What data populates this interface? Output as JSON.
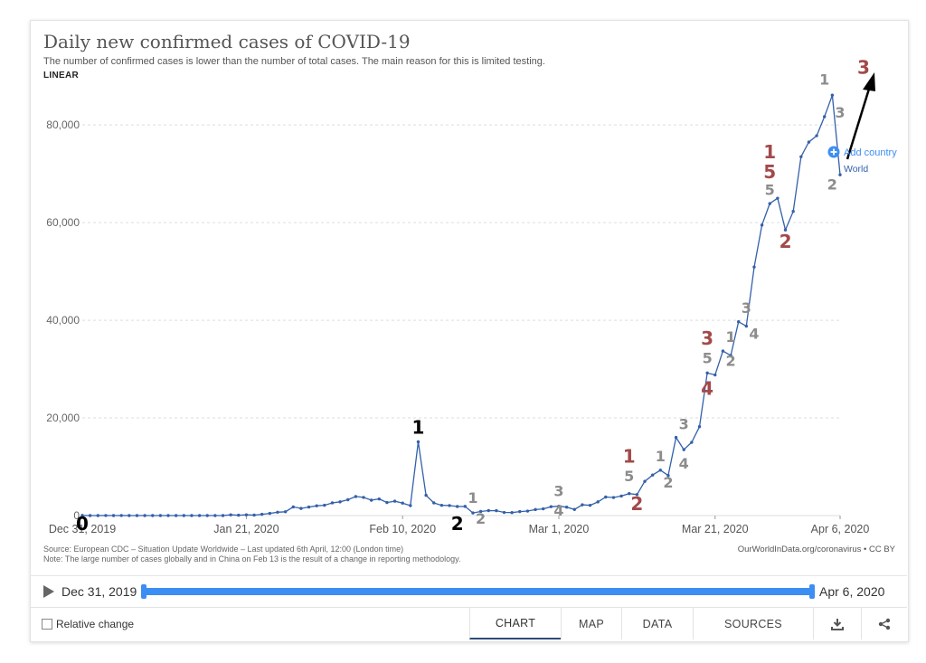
{
  "header": {
    "title": "Daily new confirmed cases of COVID-19",
    "subtitle": "The number of confirmed cases is lower than the number of total cases. The main reason for this is limited testing.",
    "scale_label": "LINEAR"
  },
  "legend": {
    "add_country_label": "Add country",
    "series_label": "World"
  },
  "source_text": "Source: European CDC – Situation Update Worldwide – Last updated 6th April, 12:00 (London time)",
  "note_text": "Note: The large number of cases globally and in China on Feb 13 is the result of a change in reporting methodology.",
  "owid_text": "OurWorldInData.org/coronavirus • CC BY",
  "timeline": {
    "start_label": "Dec 31, 2019",
    "end_label": "Apr 6, 2020"
  },
  "footer": {
    "relative_change_label": "Relative change",
    "tabs": [
      "CHART",
      "MAP",
      "DATA",
      "SOURCES"
    ],
    "active_tab": "CHART"
  },
  "colors": {
    "line": "#3360a9",
    "grid": "#dddddd",
    "accent": "#3d8ef2",
    "annotation_gray": "#8c8c8c",
    "annotation_red": "#a24a4a",
    "annotation_black": "#000000"
  },
  "chart_data": {
    "type": "line",
    "title": "Daily new confirmed cases of COVID-19",
    "x_start": "2019-12-31",
    "x_end": "2020-04-06",
    "x_tick_labels": [
      "Dec 31, 2019",
      "Jan 21, 2020",
      "Feb 10, 2020",
      "Mar 1, 2020",
      "Mar 21, 2020",
      "Apr 6, 2020"
    ],
    "x_tick_dates": [
      "2019-12-31",
      "2020-01-21",
      "2020-02-10",
      "2020-03-01",
      "2020-03-21",
      "2020-04-06"
    ],
    "y_ticks": [
      0,
      20000,
      40000,
      60000,
      80000
    ],
    "y_tick_labels": [
      "0",
      "20,000",
      "40,000",
      "60,000",
      "80,000"
    ],
    "ylim": [
      0,
      88000
    ],
    "series": [
      {
        "name": "World",
        "x": [
          "2019-12-31",
          "2020-01-01",
          "2020-01-02",
          "2020-01-03",
          "2020-01-04",
          "2020-01-05",
          "2020-01-06",
          "2020-01-07",
          "2020-01-08",
          "2020-01-09",
          "2020-01-10",
          "2020-01-11",
          "2020-01-12",
          "2020-01-13",
          "2020-01-14",
          "2020-01-15",
          "2020-01-16",
          "2020-01-17",
          "2020-01-18",
          "2020-01-19",
          "2020-01-20",
          "2020-01-21",
          "2020-01-22",
          "2020-01-23",
          "2020-01-24",
          "2020-01-25",
          "2020-01-26",
          "2020-01-27",
          "2020-01-28",
          "2020-01-29",
          "2020-01-30",
          "2020-01-31",
          "2020-02-01",
          "2020-02-02",
          "2020-02-03",
          "2020-02-04",
          "2020-02-05",
          "2020-02-06",
          "2020-02-07",
          "2020-02-08",
          "2020-02-09",
          "2020-02-10",
          "2020-02-11",
          "2020-02-12",
          "2020-02-13",
          "2020-02-14",
          "2020-02-15",
          "2020-02-16",
          "2020-02-17",
          "2020-02-18",
          "2020-02-19",
          "2020-02-20",
          "2020-02-21",
          "2020-02-22",
          "2020-02-23",
          "2020-02-24",
          "2020-02-25",
          "2020-02-26",
          "2020-02-27",
          "2020-02-28",
          "2020-02-29",
          "2020-03-01",
          "2020-03-02",
          "2020-03-03",
          "2020-03-04",
          "2020-03-05",
          "2020-03-06",
          "2020-03-07",
          "2020-03-08",
          "2020-03-09",
          "2020-03-10",
          "2020-03-11",
          "2020-03-12",
          "2020-03-13",
          "2020-03-14",
          "2020-03-15",
          "2020-03-16",
          "2020-03-17",
          "2020-03-18",
          "2020-03-19",
          "2020-03-20",
          "2020-03-21",
          "2020-03-22",
          "2020-03-23",
          "2020-03-24",
          "2020-03-25",
          "2020-03-26",
          "2020-03-27",
          "2020-03-28",
          "2020-03-29",
          "2020-03-30",
          "2020-03-31",
          "2020-04-01",
          "2020-04-02",
          "2020-04-03",
          "2020-04-04",
          "2020-04-05",
          "2020-04-06"
        ],
        "values": [
          27,
          0,
          0,
          17,
          0,
          15,
          0,
          0,
          0,
          0,
          0,
          0,
          0,
          0,
          0,
          0,
          0,
          0,
          0,
          150,
          80,
          140,
          100,
          260,
          450,
          690,
          780,
          1770,
          1460,
          1740,
          2000,
          2110,
          2600,
          2810,
          3240,
          3900,
          3720,
          3150,
          3400,
          2670,
          2950,
          2550,
          2040,
          15100,
          4150,
          2600,
          2100,
          2050,
          1860,
          1880,
          540,
          840,
          1020,
          1000,
          640,
          610,
          810,
          920,
          1230,
          1380,
          1820,
          1900,
          1720,
          1250,
          2200,
          2100,
          2800,
          3800,
          3700,
          4000,
          4500,
          4300,
          7000,
          8300,
          9300,
          8200,
          16000,
          13500,
          15000,
          18200,
          29200,
          28800,
          33700,
          32800,
          39700,
          38800,
          50900,
          59500,
          63900,
          65000,
          58500,
          62300,
          73500,
          76500,
          77800,
          81700,
          86100,
          69800
        ]
      }
    ],
    "annotations": [
      {
        "text": "3",
        "date": "2020-04-06",
        "y": 81500,
        "color": "annotation_gray",
        "size": 16
      },
      {
        "text": "3",
        "date": "2020-04-09",
        "y": 90500,
        "color": "annotation_red",
        "size": 20
      },
      {
        "text": "1",
        "date": "2020-04-04",
        "y": 88300,
        "color": "annotation_gray",
        "size": 16
      },
      {
        "text": "2",
        "date": "2020-04-05",
        "y": 66800,
        "color": "annotation_gray",
        "size": 16
      },
      {
        "text": "1",
        "date": "2020-03-28",
        "y": 73200,
        "color": "annotation_red",
        "size": 20
      },
      {
        "text": "5",
        "date": "2020-03-28",
        "y": 69100,
        "color": "annotation_red",
        "size": 20
      },
      {
        "text": "5",
        "date": "2020-03-28",
        "y": 65700,
        "color": "annotation_gray",
        "size": 16
      },
      {
        "text": "2",
        "date": "2020-03-30",
        "y": 54800,
        "color": "annotation_red",
        "size": 20
      },
      {
        "text": "3",
        "date": "2020-03-25",
        "y": 41500,
        "color": "annotation_gray",
        "size": 16
      },
      {
        "text": "4",
        "date": "2020-03-26",
        "y": 36200,
        "color": "annotation_gray",
        "size": 16
      },
      {
        "text": "1",
        "date": "2020-03-23",
        "y": 35600,
        "color": "annotation_gray",
        "size": 16
      },
      {
        "text": "2",
        "date": "2020-03-23",
        "y": 30700,
        "color": "annotation_gray",
        "size": 16
      },
      {
        "text": "3",
        "date": "2020-03-20",
        "y": 35000,
        "color": "annotation_red",
        "size": 20
      },
      {
        "text": "5",
        "date": "2020-03-20",
        "y": 31200,
        "color": "annotation_gray",
        "size": 16
      },
      {
        "text": "4",
        "date": "2020-03-20",
        "y": 24700,
        "color": "annotation_red",
        "size": 20
      },
      {
        "text": "3",
        "date": "2020-03-17",
        "y": 17700,
        "color": "annotation_gray",
        "size": 16
      },
      {
        "text": "4",
        "date": "2020-03-17",
        "y": 9600,
        "color": "annotation_gray",
        "size": 16
      },
      {
        "text": "1",
        "date": "2020-03-14",
        "y": 11100,
        "color": "annotation_gray",
        "size": 16
      },
      {
        "text": "2",
        "date": "2020-03-15",
        "y": 5700,
        "color": "annotation_gray",
        "size": 16
      },
      {
        "text": "1",
        "date": "2020-03-10",
        "y": 10800,
        "color": "annotation_red",
        "size": 20
      },
      {
        "text": "5",
        "date": "2020-03-10",
        "y": 7000,
        "color": "annotation_gray",
        "size": 16
      },
      {
        "text": "2",
        "date": "2020-03-11",
        "y": 1100,
        "color": "annotation_red",
        "size": 20
      },
      {
        "text": "3",
        "date": "2020-03-01",
        "y": 4000,
        "color": "annotation_gray",
        "size": 16
      },
      {
        "text": "4",
        "date": "2020-03-01",
        "y": 0,
        "color": "annotation_gray",
        "size": 16
      },
      {
        "text": "1",
        "date": "2020-02-19",
        "y": 2600,
        "color": "annotation_gray",
        "size": 16
      },
      {
        "text": "2",
        "date": "2020-02-20",
        "y": -1700,
        "color": "annotation_gray",
        "size": 16
      },
      {
        "text": "2",
        "date": "2020-02-17",
        "y": -3000,
        "color": "annotation_black",
        "size": 20
      },
      {
        "text": "1",
        "date": "2020-02-12",
        "y": 16800,
        "color": "annotation_black",
        "size": 20
      },
      {
        "text": "0",
        "date": "2019-12-31",
        "y": -3000,
        "color": "annotation_black",
        "size": 20
      }
    ]
  }
}
